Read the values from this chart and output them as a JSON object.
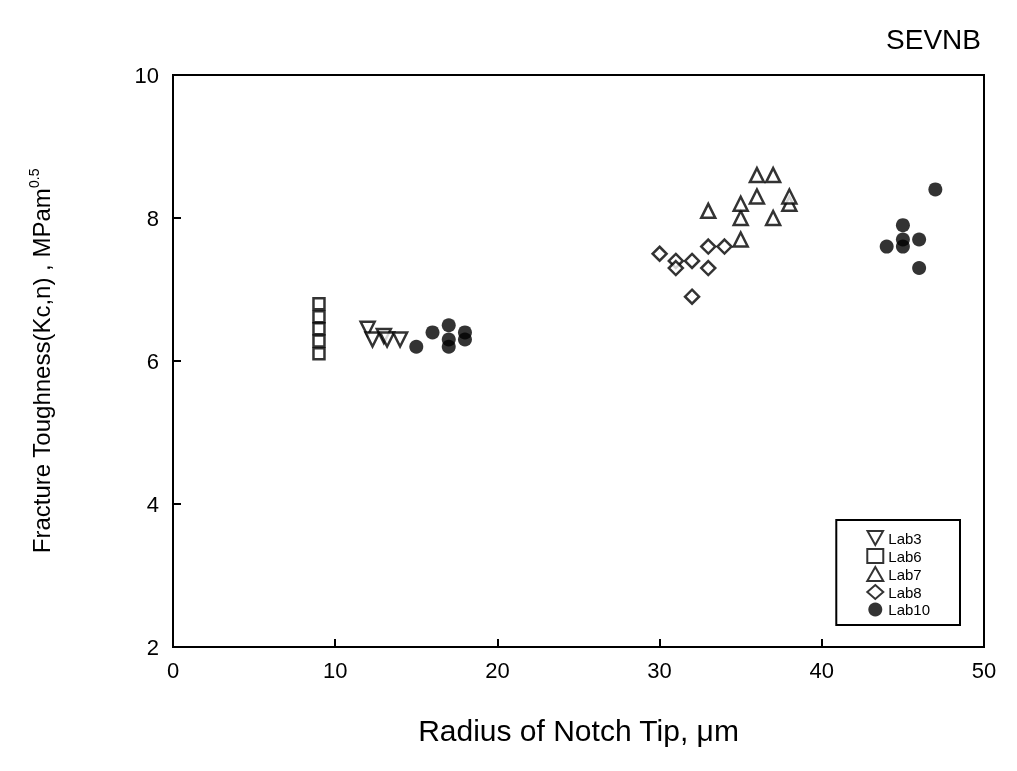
{
  "chart_data": {
    "type": "scatter",
    "title": "SEVNB",
    "xlabel": "Radius of Notch Tip, μm",
    "ylabel": "Fracture Toughness(Kc,n) , MPam$^{0.5}$",
    "xlim": [
      0,
      50
    ],
    "xticks": [
      0,
      10,
      20,
      30,
      40,
      50
    ],
    "ylim": [
      2,
      10
    ],
    "yticks": [
      2,
      4,
      6,
      8,
      10
    ],
    "grid": false,
    "legend": "bottom right",
    "series": [
      {
        "name": "Lab3",
        "color": "#000000",
        "marker": "triangle_down",
        "x": [
          12,
          12.3,
          13,
          13.2,
          14
        ],
        "values": [
          6.45,
          6.3,
          6.35,
          6.3,
          6.3
        ]
      },
      {
        "name": "Lab6",
        "color": "#000000",
        "marker": "square",
        "x": [
          9,
          9,
          9,
          9,
          9
        ],
        "values": [
          6.1,
          6.28,
          6.45,
          6.62,
          6.8
        ]
      },
      {
        "name": "Lab7",
        "color": "#000000",
        "marker": "triangle",
        "x": [
          33,
          35,
          35,
          35,
          36,
          36,
          37,
          37,
          38,
          38
        ],
        "values": [
          8.1,
          7.7,
          8.0,
          8.2,
          8.3,
          8.6,
          8.6,
          8.0,
          8.2,
          8.3
        ]
      },
      {
        "name": "Lab8",
        "color": "#000000",
        "marker": "diamond",
        "x": [
          30,
          31,
          31,
          32,
          32,
          33,
          33,
          34
        ],
        "values": [
          7.5,
          7.4,
          7.3,
          7.4,
          6.9,
          7.3,
          7.6,
          7.6
        ]
      },
      {
        "name": "Lab10",
        "color": "#000000",
        "marker": "circle",
        "x": [
          15,
          16,
          17,
          17,
          17,
          18,
          18,
          44,
          45,
          45,
          45,
          46,
          46,
          47
        ],
        "values": [
          6.2,
          6.4,
          6.5,
          6.3,
          6.2,
          6.4,
          6.3,
          7.6,
          7.6,
          7.9,
          7.7,
          7.7,
          7.3,
          8.4
        ]
      }
    ]
  }
}
